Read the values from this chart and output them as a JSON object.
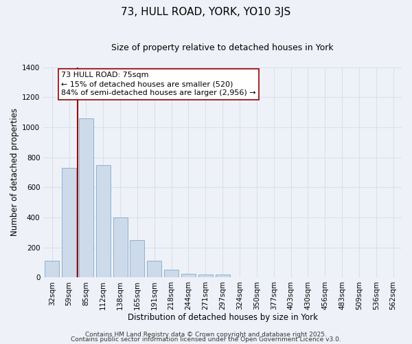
{
  "title": "73, HULL ROAD, YORK, YO10 3JS",
  "subtitle": "Size of property relative to detached houses in York",
  "xlabel": "Distribution of detached houses by size in York",
  "ylabel": "Number of detached properties",
  "bar_labels": [
    "32sqm",
    "59sqm",
    "85sqm",
    "112sqm",
    "138sqm",
    "165sqm",
    "191sqm",
    "218sqm",
    "244sqm",
    "271sqm",
    "297sqm",
    "324sqm",
    "350sqm",
    "377sqm",
    "403sqm",
    "430sqm",
    "456sqm",
    "483sqm",
    "509sqm",
    "536sqm",
    "562sqm"
  ],
  "bar_values": [
    110,
    730,
    1060,
    750,
    400,
    248,
    113,
    50,
    25,
    22,
    20,
    0,
    0,
    0,
    0,
    0,
    0,
    0,
    0,
    0,
    0
  ],
  "bar_color": "#ccdaea",
  "bar_edge_color": "#90b0cc",
  "vline_x_pos": 1.5,
  "vline_color": "#990000",
  "ylim": [
    0,
    1400
  ],
  "yticks": [
    0,
    200,
    400,
    600,
    800,
    1000,
    1200,
    1400
  ],
  "annotation_title": "73 HULL ROAD: 75sqm",
  "annotation_line1": "← 15% of detached houses are smaller (520)",
  "annotation_line2": "84% of semi-detached houses are larger (2,956) →",
  "annotation_box_facecolor": "#ffffff",
  "annotation_box_edgecolor": "#990000",
  "footer1": "Contains HM Land Registry data © Crown copyright and database right 2025.",
  "footer2": "Contains public sector information licensed under the Open Government Licence v3.0.",
  "background_color": "#eef2f8",
  "grid_color": "#d8e0ec",
  "title_fontsize": 11,
  "subtitle_fontsize": 9,
  "axis_label_fontsize": 8.5,
  "tick_fontsize": 7.5,
  "annotation_fontsize": 8,
  "footer_fontsize": 6.5
}
